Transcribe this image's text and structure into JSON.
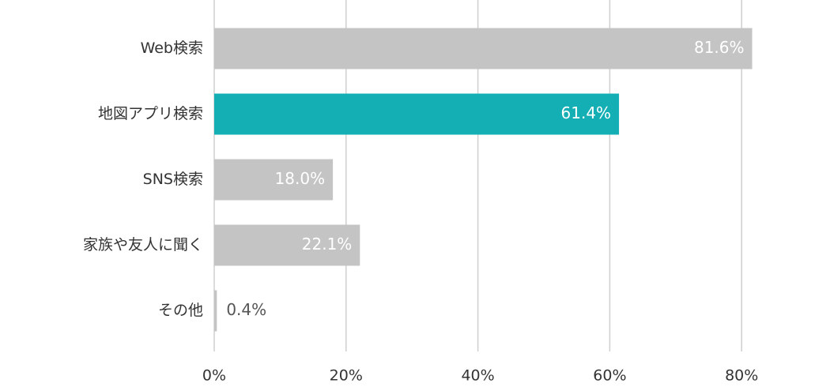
{
  "chart_data": {
    "type": "hbar",
    "categories": [
      "Web検索",
      "地図アプリ検索",
      "SNS検索",
      "家族や友人に聞く",
      "その他"
    ],
    "values": [
      81.6,
      61.4,
      18.0,
      22.1,
      0.4
    ],
    "value_labels": [
      "81.6%",
      "61.4%",
      "18.0%",
      "22.1%",
      "0.4%"
    ],
    "colors": [
      "#c4c4c4",
      "#14afb5",
      "#c4c4c4",
      "#c4c4c4",
      "#c4c4c4"
    ],
    "xlim": [
      0,
      90
    ],
    "xticks": [
      {
        "value": 0,
        "label": "0%"
      },
      {
        "value": 20,
        "label": "20%"
      },
      {
        "value": 40,
        "label": "40%"
      },
      {
        "value": 60,
        "label": "60%"
      },
      {
        "value": 80,
        "label": "80%"
      }
    ],
    "grid": true
  }
}
